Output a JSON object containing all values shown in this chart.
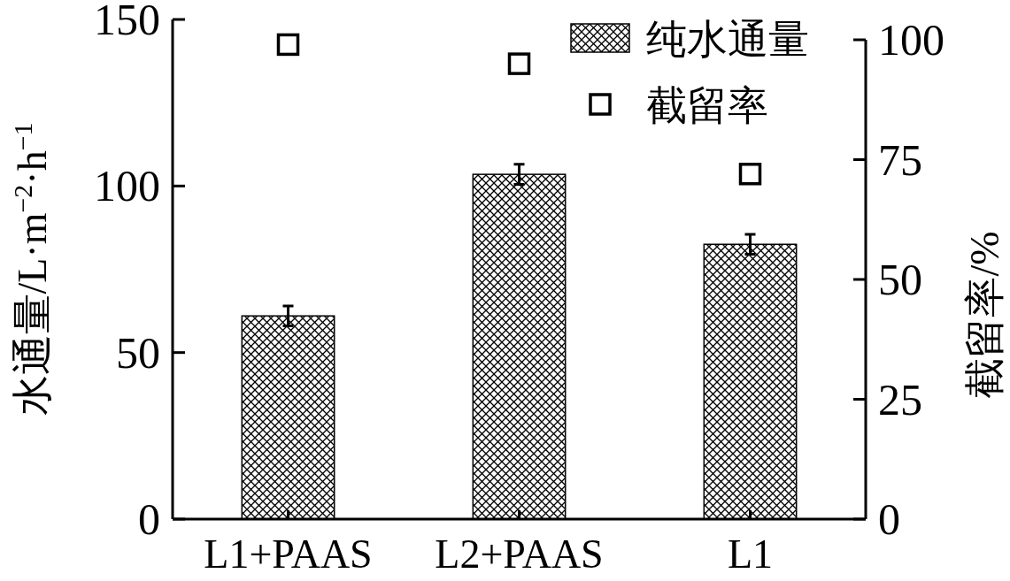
{
  "chart_data": {
    "type": "bar",
    "ylabel": "水通量/L·m$^{−2}$·h$^{−1}$",
    "y2label": "截留率/%",
    "categories": [
      "L1+PAAS",
      "L2+PAAS",
      "L1"
    ],
    "series": [
      {
        "name": "纯水通量",
        "color": "#000000",
        "values": [
          61,
          103.5,
          82.5
        ],
        "errors": [
          3,
          3,
          3
        ]
      },
      {
        "name": "截留率",
        "type": "scatter",
        "axis": "y2",
        "color": "#000000",
        "marker": "square",
        "values": [
          99,
          95,
          72
        ]
      }
    ],
    "ylim": [
      0,
      150
    ],
    "yticks": [
      0,
      50,
      100,
      150
    ],
    "y2lim": [
      0,
      100
    ],
    "y2ticks": [
      0,
      25,
      50,
      75,
      100
    ],
    "legend": "top right",
    "grid": false
  }
}
